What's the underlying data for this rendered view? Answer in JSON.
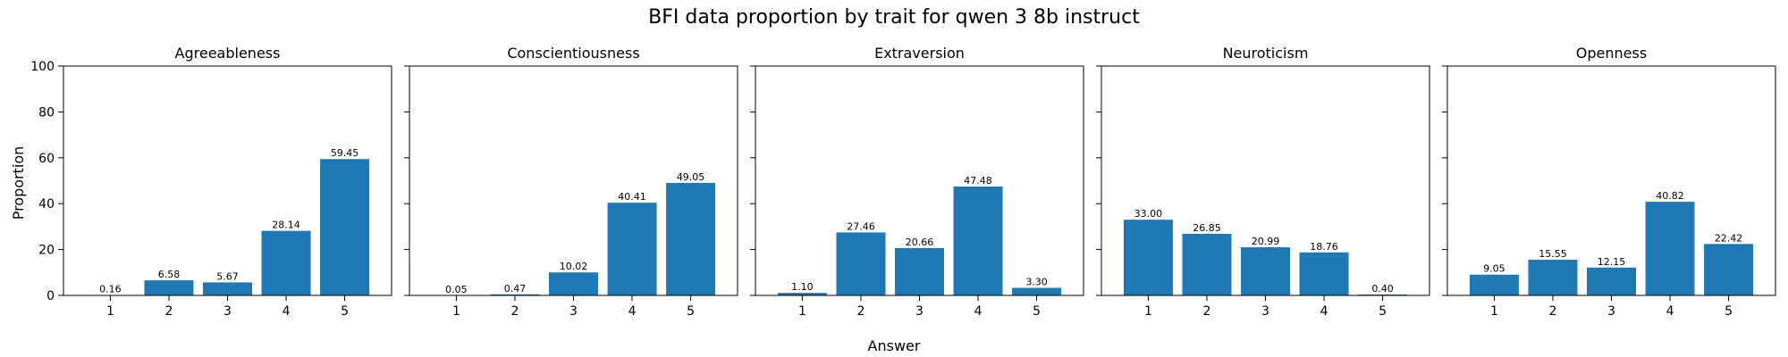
{
  "figure_title": "BFI data proportion by trait for qwen 3 8b instruct",
  "xlabel": "Answer",
  "ylabel": "Proportion",
  "bar_color": "#1f77b4",
  "chart_data": [
    {
      "type": "bar",
      "title": "Agreeableness",
      "categories": [
        "1",
        "2",
        "3",
        "4",
        "5"
      ],
      "values": [
        0.16,
        6.58,
        5.67,
        28.14,
        59.45
      ],
      "labels": [
        "0.16",
        "6.58",
        "5.67",
        "28.14",
        "59.45"
      ],
      "ylim": [
        0,
        100
      ],
      "yticks": [
        "0",
        "20",
        "40",
        "60",
        "80",
        "100"
      ]
    },
    {
      "type": "bar",
      "title": "Conscientiousness",
      "categories": [
        "1",
        "2",
        "3",
        "4",
        "5"
      ],
      "values": [
        0.05,
        0.47,
        10.02,
        40.41,
        49.05
      ],
      "labels": [
        "0.05",
        "0.47",
        "10.02",
        "40.41",
        "49.05"
      ],
      "ylim": [
        0,
        100
      ]
    },
    {
      "type": "bar",
      "title": "Extraversion",
      "categories": [
        "1",
        "2",
        "3",
        "4",
        "5"
      ],
      "values": [
        1.1,
        27.46,
        20.66,
        47.48,
        3.3
      ],
      "labels": [
        "1.10",
        "27.46",
        "20.66",
        "47.48",
        "3.30"
      ],
      "ylim": [
        0,
        100
      ]
    },
    {
      "type": "bar",
      "title": "Neuroticism",
      "categories": [
        "1",
        "2",
        "3",
        "4",
        "5"
      ],
      "values": [
        33.0,
        26.85,
        20.99,
        18.76,
        0.4
      ],
      "labels": [
        "33.00",
        "26.85",
        "20.99",
        "18.76",
        "0.40"
      ],
      "ylim": [
        0,
        100
      ]
    },
    {
      "type": "bar",
      "title": "Openness",
      "categories": [
        "1",
        "2",
        "3",
        "4",
        "5"
      ],
      "values": [
        9.05,
        15.55,
        12.15,
        40.82,
        22.42
      ],
      "labels": [
        "9.05",
        "15.55",
        "12.15",
        "40.82",
        "22.42"
      ],
      "ylim": [
        0,
        100
      ]
    }
  ]
}
